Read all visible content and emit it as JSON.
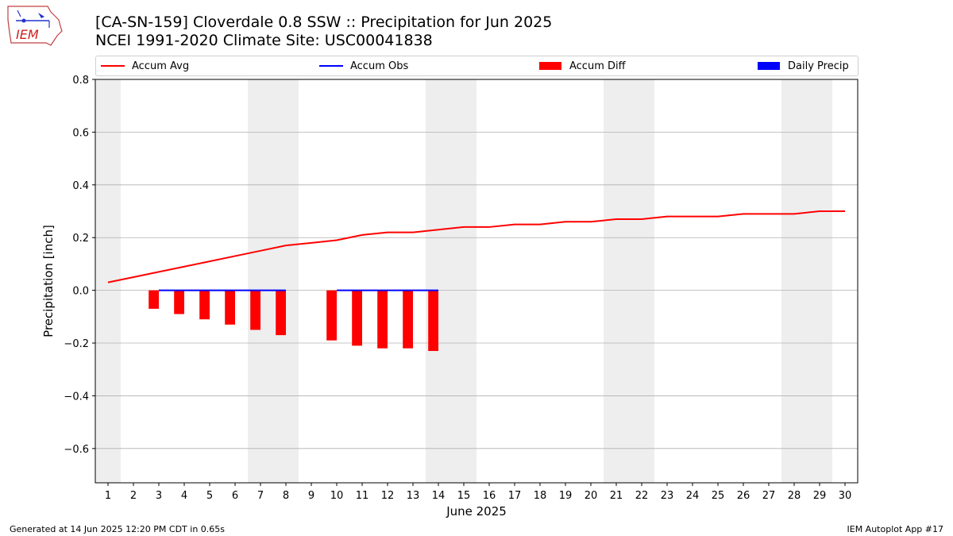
{
  "header": {
    "logo_text": "IEM",
    "title_line1": "[CA-SN-159] Cloverdale 0.8 SSW :: Precipitation for Jun 2025",
    "title_line2": "NCEI 1991-2020 Climate Site: USC00041838"
  },
  "legend": [
    {
      "label": "Accum Avg",
      "kind": "line",
      "color": "#ff0000"
    },
    {
      "label": "Accum Obs",
      "kind": "line",
      "color": "#0000ff"
    },
    {
      "label": "Accum Diff",
      "kind": "box",
      "color": "#ff0000"
    },
    {
      "label": "Daily Precip",
      "kind": "box",
      "color": "#0000ff"
    }
  ],
  "footer": {
    "left": "Generated at 14 Jun 2025 12:20 PM CDT in 0.65s",
    "right": "IEM Autoplot App #17"
  },
  "chart_data": {
    "type": "line",
    "xlabel": "June 2025",
    "ylabel": "Precipitation [inch]",
    "ylim": [
      -0.73,
      0.8
    ],
    "y_ticks": [
      -0.6,
      -0.4,
      -0.2,
      0.0,
      0.2,
      0.4,
      0.6,
      0.8
    ],
    "y_tick_labels": [
      "−0.6",
      "−0.4",
      "−0.2",
      "0.0",
      "0.2",
      "0.4",
      "0.6",
      "0.8"
    ],
    "x_ticks": [
      1,
      2,
      3,
      4,
      5,
      6,
      7,
      8,
      9,
      10,
      11,
      12,
      13,
      14,
      15,
      16,
      17,
      18,
      19,
      20,
      21,
      22,
      23,
      24,
      25,
      26,
      27,
      28,
      29,
      30
    ],
    "grid": "horizontal",
    "weekend_shading": [
      [
        1,
        1
      ],
      [
        7,
        8
      ],
      [
        14,
        15
      ],
      [
        21,
        22
      ],
      [
        28,
        29
      ]
    ],
    "shading_color": "#eeeeee",
    "accum_avg": {
      "name": "Accum Avg",
      "color": "#ff0000",
      "x": [
        1,
        2,
        3,
        4,
        5,
        6,
        7,
        8,
        9,
        10,
        11,
        12,
        13,
        14,
        15,
        16,
        17,
        18,
        19,
        20,
        21,
        22,
        23,
        24,
        25,
        26,
        27,
        28,
        29,
        30
      ],
      "y": [
        0.03,
        0.05,
        0.07,
        0.09,
        0.11,
        0.13,
        0.15,
        0.17,
        0.18,
        0.19,
        0.21,
        0.22,
        0.22,
        0.23,
        0.24,
        0.24,
        0.25,
        0.25,
        0.26,
        0.26,
        0.27,
        0.27,
        0.28,
        0.28,
        0.28,
        0.29,
        0.29,
        0.29,
        0.3,
        0.3
      ]
    },
    "accum_obs": {
      "name": "Accum Obs",
      "color": "#0000ff",
      "segments": [
        {
          "x": [
            3,
            4,
            5,
            6,
            7,
            8
          ],
          "y": [
            0,
            0,
            0,
            0,
            0,
            0
          ]
        },
        {
          "x": [
            10,
            11,
            12,
            13,
            14
          ],
          "y": [
            0,
            0,
            0,
            0,
            0
          ]
        }
      ]
    },
    "accum_diff": {
      "name": "Accum Diff",
      "color": "#ff0000",
      "x": [
        3,
        4,
        5,
        6,
        7,
        8,
        10,
        11,
        12,
        13,
        14
      ],
      "y": [
        -0.07,
        -0.09,
        -0.11,
        -0.13,
        -0.15,
        -0.17,
        -0.19,
        -0.21,
        -0.22,
        -0.22,
        -0.23
      ]
    },
    "daily_precip": {
      "name": "Daily Precip",
      "color": "#0000ff",
      "x": [],
      "y": []
    }
  }
}
